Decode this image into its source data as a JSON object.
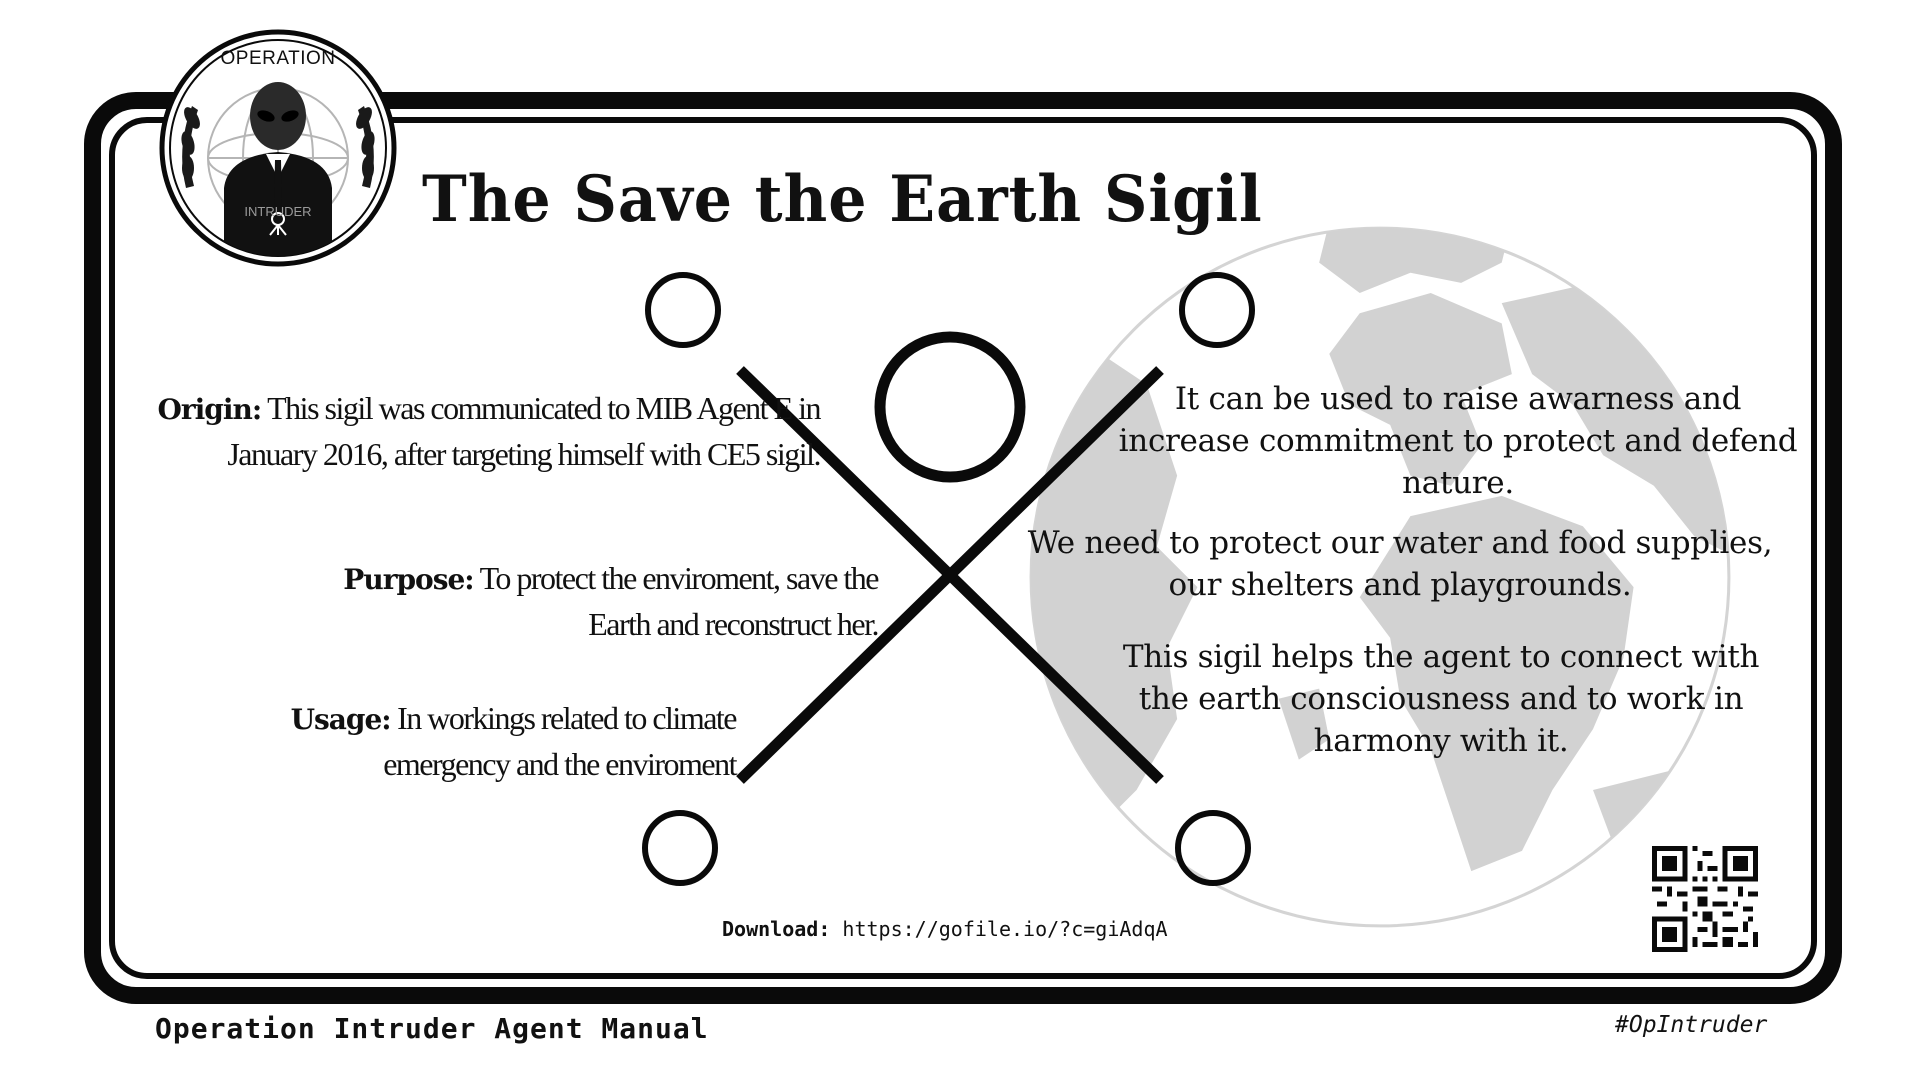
{
  "emblem": {
    "top_text": "OPERATION",
    "bottom_text": "INTRUDER",
    "icon": "alien-agent-emblem-icon"
  },
  "title": "The Save the Earth Sigil",
  "left": {
    "origin": {
      "label": "Origin:",
      "text": "This sigil was communicated to MIB Agent E in January 2016, after targeting himself with CE5 sigil."
    },
    "purpose": {
      "label": "Purpose:",
      "text": "To protect the enviroment, save the Earth and reconstruct her."
    },
    "usage": {
      "label": "Usage:",
      "text": "In workings related to climate emergency and the enviroment"
    }
  },
  "right": {
    "p1": "It can be used to raise awarness and increase commitment to protect and defend nature.",
    "p2": "We need to protect our water and food supplies, our shelters and playgrounds.",
    "p3": "This sigil helps the agent to connect with the earth consciousness and to work in harmony with it."
  },
  "download": {
    "label": "Download:",
    "url": "https://gofile.io/?c=giAdqA"
  },
  "footer": {
    "manual": "Operation Intruder Agent Manual",
    "hashtag": "#OpIntruder"
  },
  "icons": {
    "globe": "earth-globe-icon",
    "sigil": "x-sigil-icon",
    "qr": "qr-code-icon"
  },
  "colors": {
    "ink": "#0a0a0a",
    "globe": "#d0d0d0"
  }
}
